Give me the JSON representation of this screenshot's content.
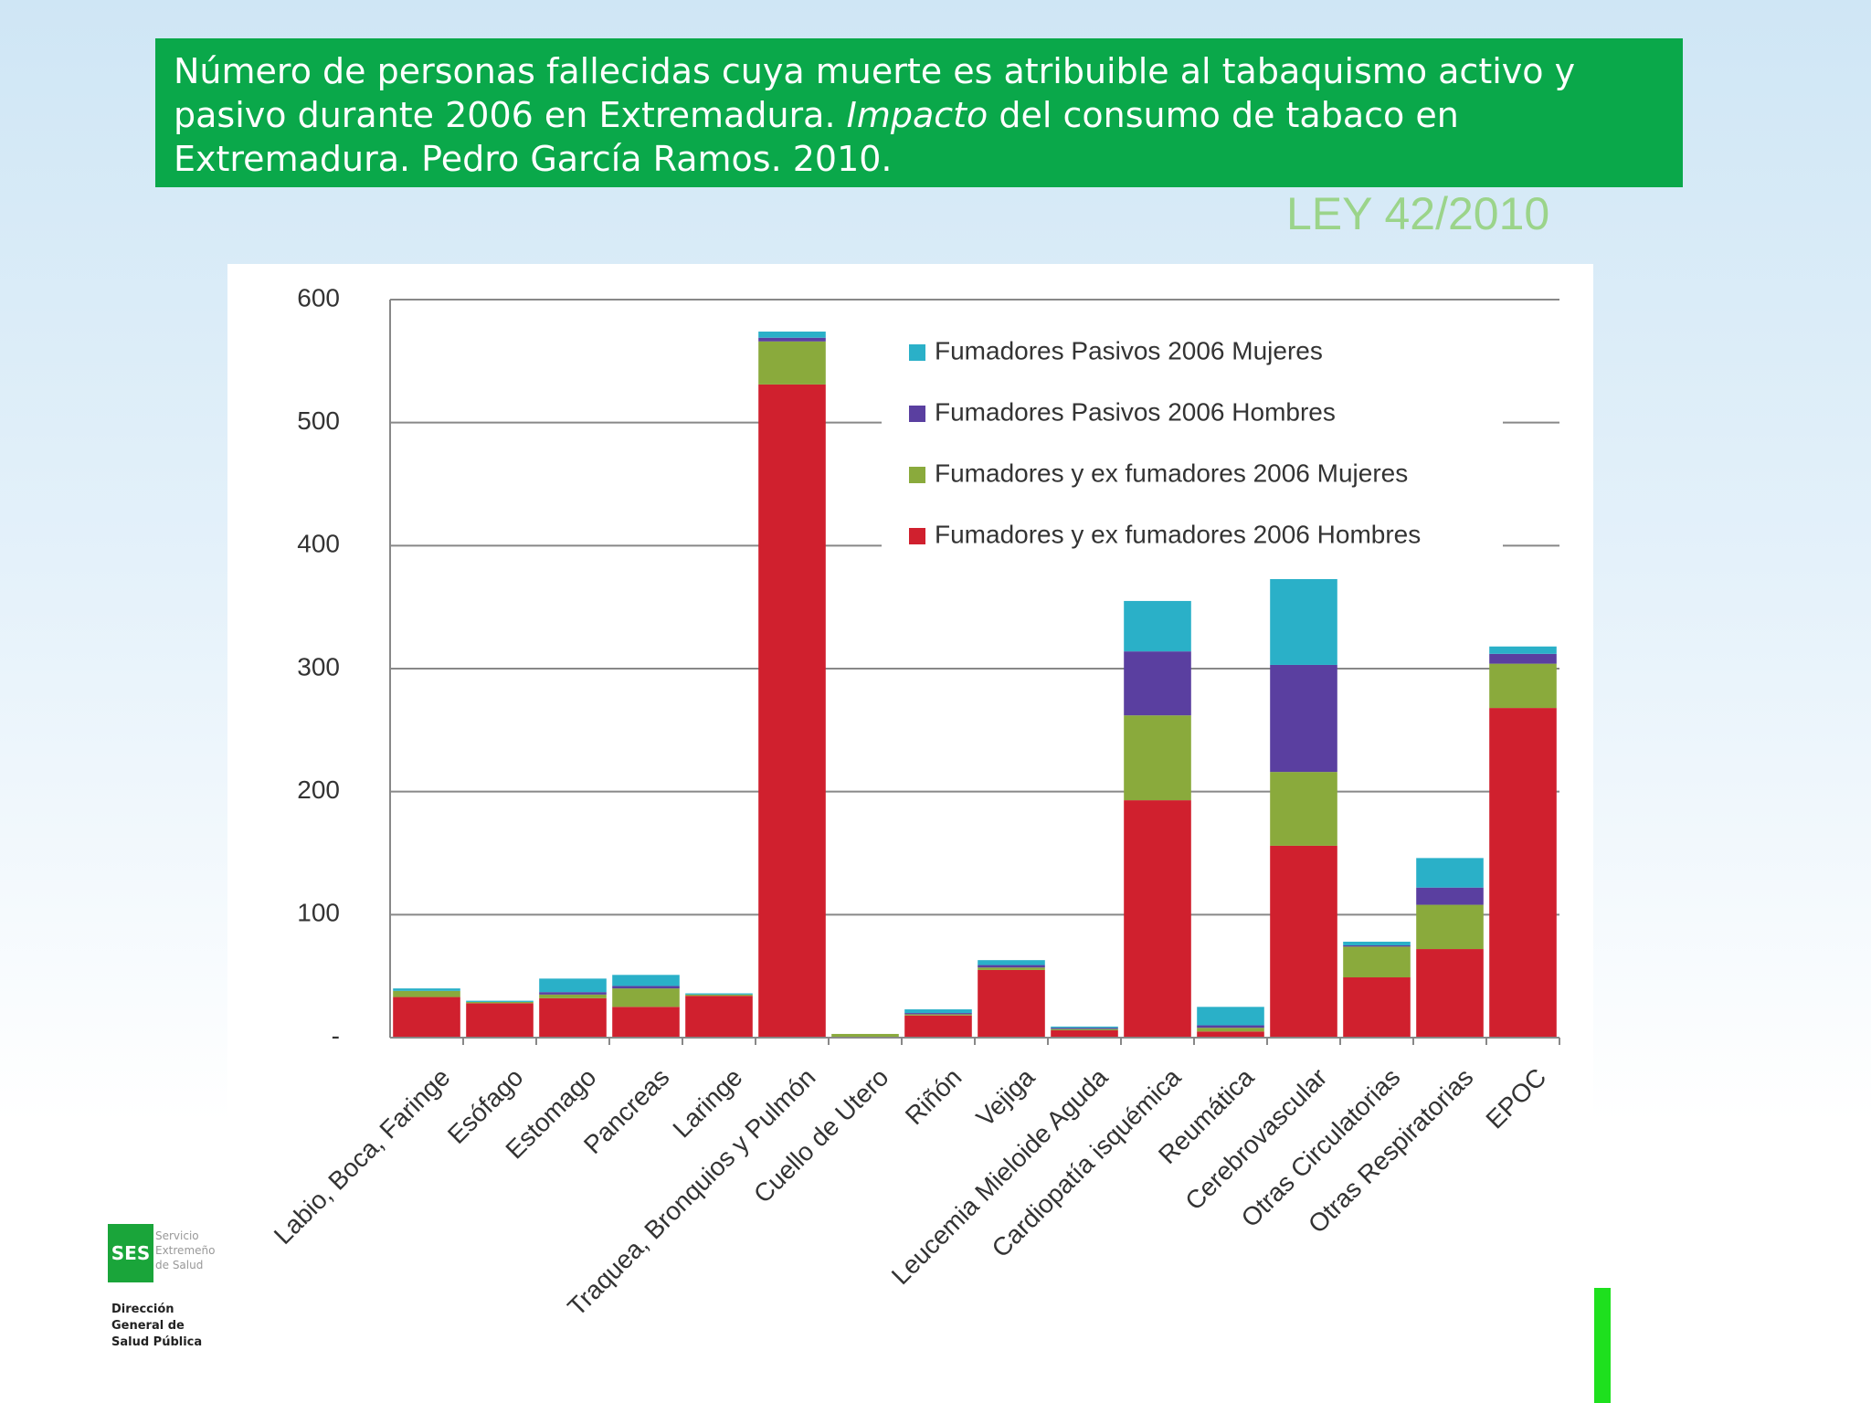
{
  "slide": {
    "title_start": "Número de personas fallecidas cuya muerte es atribuible al tabaquismo activo y pasivo  durante 2006 en Extremadura. ",
    "title_italic": "Impacto",
    "title_end": " del consumo de tabaco en Extremadura. Pedro García Ramos. 2010.",
    "law": "LEY 42/2010",
    "logo": "SES",
    "logo_text": "Servicio Extremeño de Salud",
    "department": "Dirección General de Salud Pública"
  },
  "chart_data": {
    "type": "stacked_bar",
    "categories": [
      "Labio, Boca, Faringe",
      "Esófago",
      "Estomago",
      "Pancreas",
      "Laringe",
      "Traquea, Bronquios y Pulmón",
      "Cuello de Utero",
      "Riñón",
      "Vejiga",
      "Leucemia Mieloide Aguda",
      "Cardiopatía isquémica",
      "Reumática",
      "Cerebrovascular",
      "Otras Circulatorias",
      "Otras Respiratorias",
      "EPOC"
    ],
    "series": [
      {
        "name": "Fumadores y ex fumadores 2006 Hombres",
        "color": "#d0202e",
        "values": [
          33,
          28,
          32,
          25,
          34,
          531,
          0,
          18,
          55,
          6,
          193,
          5,
          156,
          49,
          72,
          268
        ]
      },
      {
        "name": "Fumadores y ex fumadores 2006 Mujeres",
        "color": "#8aaa3c",
        "values": [
          5,
          1,
          3,
          15,
          1,
          35,
          3,
          1,
          2,
          1,
          69,
          3,
          60,
          25,
          36,
          36
        ]
      },
      {
        "name": "Fumadores Pasivos 2006 Hombres",
        "color": "#5a3fa0",
        "values": [
          0,
          0,
          2,
          2,
          0,
          3,
          0,
          1,
          2,
          1,
          52,
          2,
          87,
          1,
          14,
          8
        ]
      },
      {
        "name": "Fumadores Pasivos 2006 Mujeres",
        "color": "#2ab0c8",
        "values": [
          2,
          1,
          11,
          9,
          1,
          5,
          0,
          3,
          4,
          1,
          41,
          15,
          79,
          3,
          24,
          6
        ]
      }
    ],
    "ylim": [
      0,
      600
    ],
    "yticks": [
      {
        "value": 0,
        "label": "-"
      },
      100,
      200,
      300,
      400,
      500,
      600
    ],
    "grid": true,
    "legend": "top-right"
  }
}
